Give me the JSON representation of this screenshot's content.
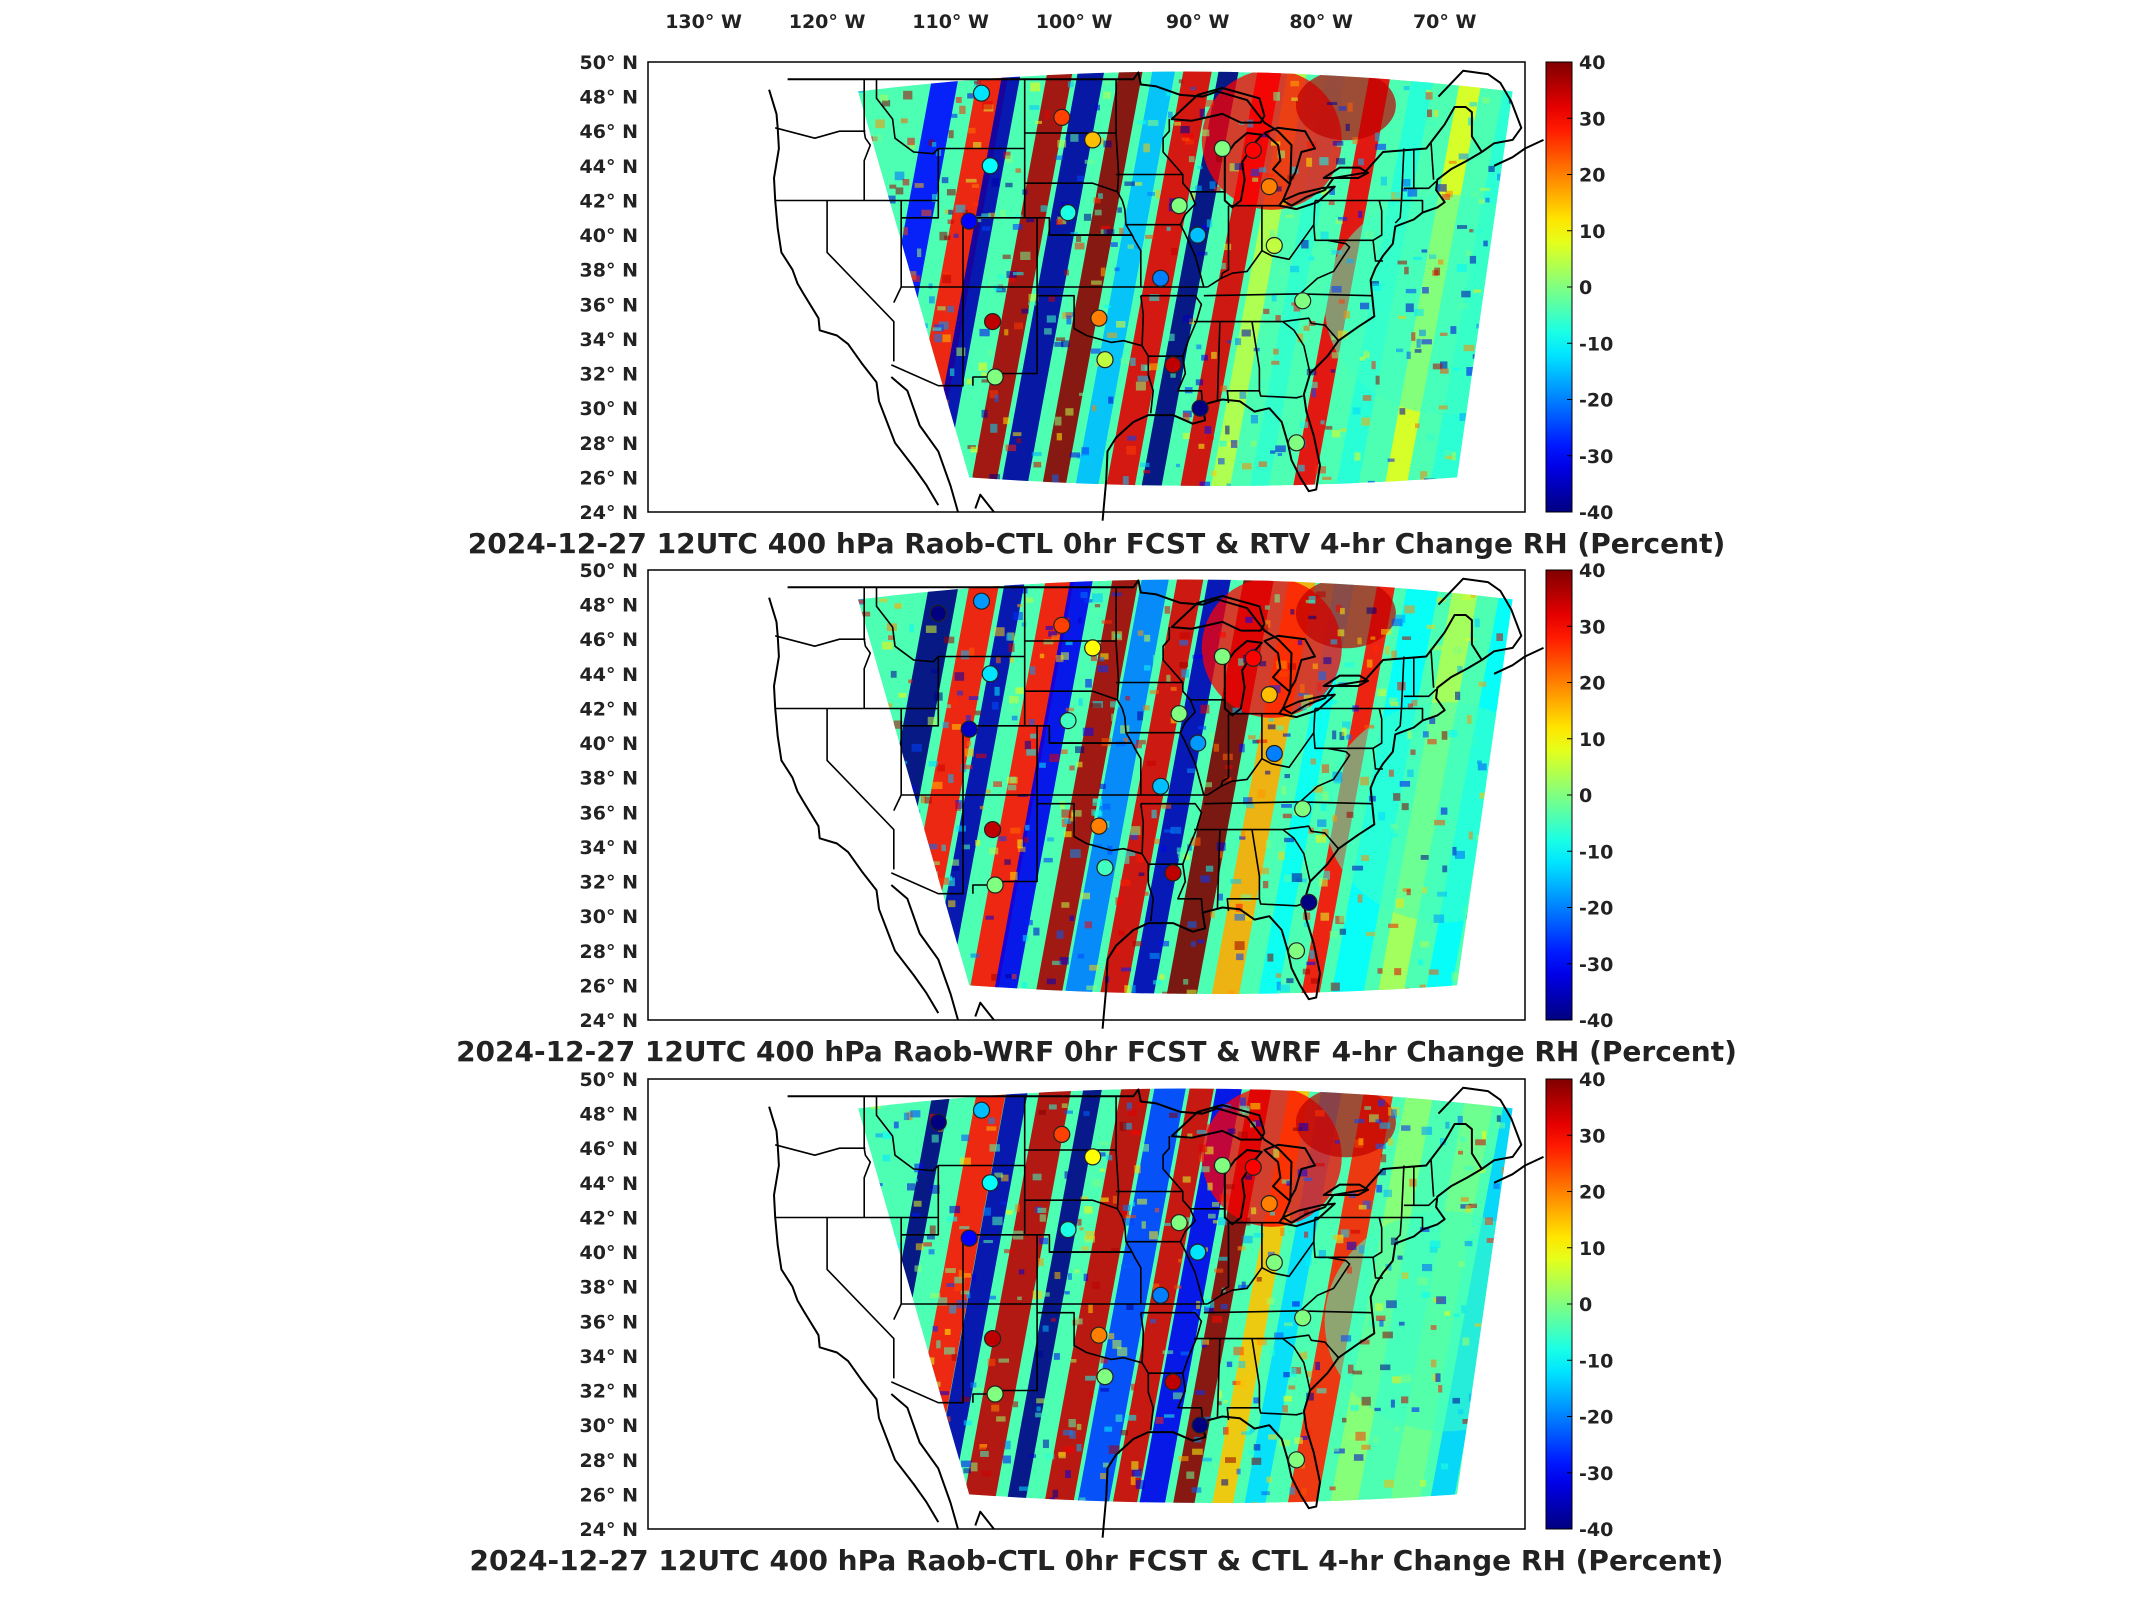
{
  "figure": {
    "lon_ticks": [
      "130° W",
      "120° W",
      "110° W",
      "100° W",
      "90° W",
      "80° W",
      "70° W"
    ],
    "lat_ticks": [
      "50° N",
      "48° N",
      "46° N",
      "44° N",
      "42° N",
      "40° N",
      "38° N",
      "36° N",
      "34° N",
      "32° N",
      "30° N",
      "28° N",
      "26° N",
      "24° N"
    ],
    "colorbar": {
      "ticks": [
        "40",
        "30",
        "20",
        "10",
        "0",
        "-10",
        "-20",
        "-30",
        "-40"
      ],
      "range": [
        -40,
        40
      ],
      "colormap": "jet",
      "colors": [
        "#00008f",
        "#0000ff",
        "#0080ff",
        "#00ffff",
        "#80ff80",
        "#ffff00",
        "#ff8000",
        "#ff0000",
        "#800000"
      ]
    },
    "panels": [
      {
        "title": "2024-12-27 12UTC 400 hPa Raob-CTL 0hr FCST & RTV 4-hr Change RH (Percent)",
        "seed": 7
      },
      {
        "title": "2024-12-27 12UTC 400 hPa Raob-WRF 0hr FCST & WRF 4-hr Change RH (Percent)",
        "seed": 19
      },
      {
        "title": "2024-12-27 12UTC 400 hPa Raob-CTL 0hr FCST & CTL 4-hr Change RH (Percent)",
        "seed": 31
      }
    ],
    "stations": [
      {
        "lon": -111.0,
        "lat": 47.5,
        "v": [
          null,
          -40,
          -40
        ]
      },
      {
        "lon": -107.5,
        "lat": 48.2,
        "v": [
          -12,
          -18,
          -15
        ]
      },
      {
        "lon": -101.0,
        "lat": 46.8,
        "v": [
          25,
          25,
          25
        ]
      },
      {
        "lon": -98.5,
        "lat": 45.5,
        "v": [
          15,
          10,
          10
        ]
      },
      {
        "lon": -106.8,
        "lat": 44.0,
        "v": [
          -10,
          -12,
          -10
        ]
      },
      {
        "lon": -100.5,
        "lat": 41.3,
        "v": [
          -8,
          -5,
          -8
        ]
      },
      {
        "lon": -108.5,
        "lat": 40.8,
        "v": [
          -30,
          -35,
          -30
        ]
      },
      {
        "lon": -93.0,
        "lat": 37.5,
        "v": [
          -20,
          -15,
          -20
        ]
      },
      {
        "lon": -98.0,
        "lat": 35.2,
        "v": [
          20,
          20,
          20
        ]
      },
      {
        "lon": -106.6,
        "lat": 35.0,
        "v": [
          35,
          35,
          35
        ]
      },
      {
        "lon": -97.5,
        "lat": 32.8,
        "v": [
          5,
          -5,
          0
        ]
      },
      {
        "lon": -106.4,
        "lat": 31.8,
        "v": [
          0,
          0,
          0
        ]
      },
      {
        "lon": -92.0,
        "lat": 32.5,
        "v": [
          35,
          35,
          35
        ]
      },
      {
        "lon": -90.0,
        "lat": 40.0,
        "v": [
          -15,
          -18,
          -12
        ]
      },
      {
        "lon": -91.5,
        "lat": 41.7,
        "v": [
          0,
          0,
          0
        ]
      },
      {
        "lon": -85.5,
        "lat": 44.9,
        "v": [
          30,
          30,
          30
        ]
      },
      {
        "lon": -84.2,
        "lat": 42.8,
        "v": [
          20,
          15,
          20
        ]
      },
      {
        "lon": -88.0,
        "lat": 45.0,
        "v": [
          0,
          0,
          0
        ]
      },
      {
        "lon": -83.8,
        "lat": 39.4,
        "v": [
          5,
          -20,
          0
        ]
      },
      {
        "lon": -81.5,
        "lat": 36.2,
        "v": [
          0,
          0,
          0
        ]
      },
      {
        "lon": -82.0,
        "lat": 28.0,
        "v": [
          0,
          0,
          0
        ]
      },
      {
        "lon": -81.0,
        "lat": 30.8,
        "v": [
          null,
          -40,
          null
        ]
      },
      {
        "lon": -89.8,
        "lat": 30.0,
        "v": [
          -40,
          null,
          -40
        ]
      }
    ]
  }
}
